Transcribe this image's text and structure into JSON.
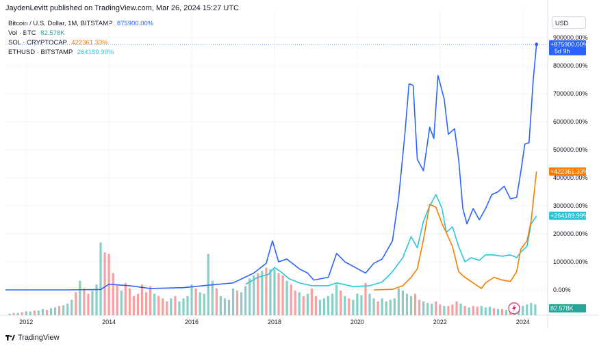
{
  "header": {
    "publisher_line": "JaydenLevitt published on TradingView.com, Mar 26, 2024 15:27 UTC"
  },
  "legend": [
    {
      "name": "Bitcoin / U.S. Dollar, 1M, BITSTAMP",
      "value": "875900.00%",
      "color": "#2962ff"
    },
    {
      "name": "Vol · BTC",
      "value": "82.578K",
      "color": "#26a69a"
    },
    {
      "name": "SOL · CRYPTOCAP",
      "value": "422361.33%",
      "color": "#f57c00"
    },
    {
      "name": "ETHUSD · BITSTAMP",
      "value": "264189.99%",
      "color": "#26c6da"
    }
  ],
  "currency_button": "USD",
  "footer": {
    "brand": "TradingView"
  },
  "price_axis": {
    "ticks": [
      "900000.00%",
      "800000.00%",
      "700000.00%",
      "600000.00%",
      "500000.00%",
      "400000.00%",
      "300000.00%",
      "200000.00%",
      "100000.00%",
      "0.00%"
    ],
    "labels": {
      "btc": {
        "text": "+875900.00%",
        "sub": "5d 9h",
        "color": "#2962ff"
      },
      "sol": {
        "text": "+422361.33%",
        "color": "#f57c00"
      },
      "eth": {
        "text": "+264189.99%",
        "color": "#26c6da"
      },
      "vol": {
        "text": "82.578K",
        "color": "#26a69a"
      }
    }
  },
  "time_axis": {
    "ticks": [
      "2012",
      "2014",
      "2016",
      "2018",
      "2020",
      "2022",
      "2024"
    ]
  },
  "chart_data": {
    "type": "line",
    "ylim": [
      -20000,
      900000
    ],
    "xlim": [
      2011.5,
      2024.6
    ],
    "series": [
      {
        "name": "Bitcoin / U.S. Dollar, 1M, BITSTAMP",
        "color": "#2962ff",
        "points": [
          [
            2011.5,
            0
          ],
          [
            2013.0,
            0
          ],
          [
            2013.8,
            1500
          ],
          [
            2014.0,
            20000
          ],
          [
            2014.5,
            15000
          ],
          [
            2015.0,
            5000
          ],
          [
            2015.8,
            8000
          ],
          [
            2016.5,
            18000
          ],
          [
            2017.0,
            25000
          ],
          [
            2017.5,
            60000
          ],
          [
            2017.8,
            95000
          ],
          [
            2017.95,
            175000
          ],
          [
            2018.1,
            100000
          ],
          [
            2018.3,
            110000
          ],
          [
            2018.6,
            75000
          ],
          [
            2018.8,
            60000
          ],
          [
            2018.95,
            35000
          ],
          [
            2019.3,
            45000
          ],
          [
            2019.5,
            130000
          ],
          [
            2019.7,
            100000
          ],
          [
            2019.95,
            80000
          ],
          [
            2020.2,
            60000
          ],
          [
            2020.4,
            95000
          ],
          [
            2020.6,
            110000
          ],
          [
            2020.85,
            175000
          ],
          [
            2021.0,
            330000
          ],
          [
            2021.15,
            555000
          ],
          [
            2021.25,
            735000
          ],
          [
            2021.35,
            730000
          ],
          [
            2021.45,
            465000
          ],
          [
            2021.6,
            425000
          ],
          [
            2021.75,
            580000
          ],
          [
            2021.85,
            540000
          ],
          [
            2021.95,
            765000
          ],
          [
            2022.1,
            680000
          ],
          [
            2022.2,
            555000
          ],
          [
            2022.35,
            575000
          ],
          [
            2022.45,
            465000
          ],
          [
            2022.55,
            290000
          ],
          [
            2022.65,
            235000
          ],
          [
            2022.8,
            290000
          ],
          [
            2022.95,
            250000
          ],
          [
            2023.1,
            290000
          ],
          [
            2023.25,
            340000
          ],
          [
            2023.4,
            350000
          ],
          [
            2023.55,
            370000
          ],
          [
            2023.7,
            325000
          ],
          [
            2023.85,
            330000
          ],
          [
            2023.95,
            420000
          ],
          [
            2024.05,
            520000
          ],
          [
            2024.15,
            525000
          ],
          [
            2024.25,
            745000
          ],
          [
            2024.33,
            875900
          ]
        ]
      },
      {
        "name": "ETHUSD · BITSTAMP",
        "color": "#26c6da",
        "points": [
          [
            2017.3,
            20000
          ],
          [
            2017.6,
            45000
          ],
          [
            2017.85,
            55000
          ],
          [
            2018.0,
            80000
          ],
          [
            2018.15,
            65000
          ],
          [
            2018.35,
            40000
          ],
          [
            2018.6,
            25000
          ],
          [
            2018.9,
            15000
          ],
          [
            2019.3,
            15000
          ],
          [
            2019.5,
            25000
          ],
          [
            2019.9,
            12000
          ],
          [
            2020.3,
            15000
          ],
          [
            2020.6,
            28000
          ],
          [
            2020.85,
            65000
          ],
          [
            2021.1,
            115000
          ],
          [
            2021.3,
            190000
          ],
          [
            2021.45,
            150000
          ],
          [
            2021.6,
            245000
          ],
          [
            2021.75,
            300000
          ],
          [
            2021.9,
            340000
          ],
          [
            2022.05,
            290000
          ],
          [
            2022.15,
            205000
          ],
          [
            2022.3,
            225000
          ],
          [
            2022.45,
            155000
          ],
          [
            2022.6,
            100000
          ],
          [
            2022.75,
            115000
          ],
          [
            2022.95,
            105000
          ],
          [
            2023.1,
            125000
          ],
          [
            2023.3,
            125000
          ],
          [
            2023.5,
            120000
          ],
          [
            2023.7,
            125000
          ],
          [
            2023.85,
            115000
          ],
          [
            2023.95,
            135000
          ],
          [
            2024.1,
            155000
          ],
          [
            2024.2,
            235000
          ],
          [
            2024.33,
            264190
          ]
        ]
      },
      {
        "name": "SOL · CRYPTOCAP",
        "color": "#f57c00",
        "points": [
          [
            2020.4,
            0
          ],
          [
            2020.85,
            2000
          ],
          [
            2021.1,
            15000
          ],
          [
            2021.3,
            45000
          ],
          [
            2021.45,
            75000
          ],
          [
            2021.6,
            180000
          ],
          [
            2021.75,
            305000
          ],
          [
            2021.9,
            295000
          ],
          [
            2022.05,
            235000
          ],
          [
            2022.15,
            205000
          ],
          [
            2022.3,
            155000
          ],
          [
            2022.45,
            65000
          ],
          [
            2022.6,
            45000
          ],
          [
            2022.75,
            30000
          ],
          [
            2022.9,
            15000
          ],
          [
            2023.0,
            5000
          ],
          [
            2023.1,
            25000
          ],
          [
            2023.3,
            45000
          ],
          [
            2023.5,
            35000
          ],
          [
            2023.7,
            30000
          ],
          [
            2023.85,
            65000
          ],
          [
            2023.95,
            145000
          ],
          [
            2024.1,
            175000
          ],
          [
            2024.2,
            245000
          ],
          [
            2024.33,
            422361
          ]
        ]
      }
    ],
    "volume": {
      "name": "Vol · BTC",
      "last_value": "82.578K",
      "up_color": "#26a69a",
      "down_color": "#ef5350",
      "bars": [
        [
          2011.6,
          2,
          1
        ],
        [
          2011.7,
          3,
          0
        ],
        [
          2011.8,
          3,
          1
        ],
        [
          2011.9,
          4,
          0
        ],
        [
          2012.0,
          5,
          1
        ],
        [
          2012.1,
          5,
          1
        ],
        [
          2012.2,
          6,
          0
        ],
        [
          2012.3,
          6,
          1
        ],
        [
          2012.4,
          8,
          1
        ],
        [
          2012.5,
          7,
          0
        ],
        [
          2012.6,
          9,
          1
        ],
        [
          2012.7,
          10,
          1
        ],
        [
          2012.8,
          12,
          0
        ],
        [
          2012.9,
          13,
          1
        ],
        [
          2013.0,
          15,
          1
        ],
        [
          2013.1,
          20,
          1
        ],
        [
          2013.2,
          30,
          0
        ],
        [
          2013.3,
          45,
          1
        ],
        [
          2013.4,
          35,
          0
        ],
        [
          2013.5,
          28,
          0
        ],
        [
          2013.6,
          32,
          1
        ],
        [
          2013.7,
          40,
          1
        ],
        [
          2013.8,
          95,
          1
        ],
        [
          2013.9,
          82,
          0
        ],
        [
          2014.0,
          80,
          0
        ],
        [
          2014.1,
          55,
          0
        ],
        [
          2014.2,
          40,
          0
        ],
        [
          2014.3,
          32,
          1
        ],
        [
          2014.4,
          42,
          0
        ],
        [
          2014.5,
          35,
          0
        ],
        [
          2014.6,
          25,
          0
        ],
        [
          2014.7,
          28,
          0
        ],
        [
          2014.8,
          40,
          0
        ],
        [
          2014.9,
          30,
          0
        ],
        [
          2015.0,
          38,
          0
        ],
        [
          2015.1,
          28,
          1
        ],
        [
          2015.2,
          25,
          0
        ],
        [
          2015.3,
          22,
          0
        ],
        [
          2015.4,
          18,
          0
        ],
        [
          2015.5,
          22,
          1
        ],
        [
          2015.6,
          25,
          0
        ],
        [
          2015.7,
          18,
          1
        ],
        [
          2015.8,
          22,
          1
        ],
        [
          2015.9,
          25,
          1
        ],
        [
          2016.0,
          40,
          1
        ],
        [
          2016.1,
          35,
          0
        ],
        [
          2016.2,
          30,
          1
        ],
        [
          2016.3,
          28,
          1
        ],
        [
          2016.4,
          80,
          1
        ],
        [
          2016.5,
          45,
          1
        ],
        [
          2016.6,
          35,
          0
        ],
        [
          2016.7,
          25,
          1
        ],
        [
          2016.8,
          22,
          1
        ],
        [
          2016.9,
          20,
          1
        ],
        [
          2017.0,
          35,
          1
        ],
        [
          2017.1,
          32,
          0
        ],
        [
          2017.2,
          30,
          1
        ],
        [
          2017.3,
          38,
          1
        ],
        [
          2017.4,
          48,
          1
        ],
        [
          2017.5,
          52,
          1
        ],
        [
          2017.6,
          55,
          0
        ],
        [
          2017.7,
          58,
          1
        ],
        [
          2017.8,
          62,
          0
        ],
        [
          2017.9,
          60,
          1
        ],
        [
          2018.0,
          60,
          1
        ],
        [
          2018.1,
          55,
          0
        ],
        [
          2018.2,
          52,
          0
        ],
        [
          2018.3,
          45,
          1
        ],
        [
          2018.4,
          40,
          0
        ],
        [
          2018.5,
          32,
          0
        ],
        [
          2018.6,
          30,
          1
        ],
        [
          2018.7,
          25,
          0
        ],
        [
          2018.8,
          28,
          1
        ],
        [
          2018.9,
          35,
          0
        ],
        [
          2019.0,
          25,
          0
        ],
        [
          2019.1,
          20,
          1
        ],
        [
          2019.2,
          22,
          1
        ],
        [
          2019.3,
          25,
          1
        ],
        [
          2019.4,
          28,
          1
        ],
        [
          2019.5,
          40,
          1
        ],
        [
          2019.6,
          32,
          0
        ],
        [
          2019.7,
          25,
          1
        ],
        [
          2019.8,
          22,
          0
        ],
        [
          2019.9,
          20,
          1
        ],
        [
          2020.0,
          28,
          1
        ],
        [
          2020.1,
          26,
          1
        ],
        [
          2020.2,
          42,
          0
        ],
        [
          2020.3,
          28,
          1
        ],
        [
          2020.4,
          22,
          1
        ],
        [
          2020.5,
          18,
          0
        ],
        [
          2020.6,
          22,
          1
        ],
        [
          2020.7,
          18,
          1
        ],
        [
          2020.8,
          20,
          1
        ],
        [
          2020.9,
          22,
          1
        ],
        [
          2021.0,
          35,
          1
        ],
        [
          2021.1,
          32,
          1
        ],
        [
          2021.2,
          28,
          1
        ],
        [
          2021.3,
          25,
          1
        ],
        [
          2021.4,
          28,
          0
        ],
        [
          2021.5,
          20,
          0
        ],
        [
          2021.6,
          18,
          1
        ],
        [
          2021.7,
          16,
          1
        ],
        [
          2021.8,
          15,
          1
        ],
        [
          2021.9,
          18,
          0
        ],
        [
          2022.0,
          14,
          0
        ],
        [
          2022.1,
          12,
          1
        ],
        [
          2022.2,
          12,
          0
        ],
        [
          2022.3,
          14,
          0
        ],
        [
          2022.4,
          18,
          0
        ],
        [
          2022.5,
          15,
          1
        ],
        [
          2022.6,
          12,
          0
        ],
        [
          2022.7,
          10,
          1
        ],
        [
          2022.8,
          12,
          0
        ],
        [
          2022.9,
          11,
          0
        ],
        [
          2023.0,
          12,
          1
        ],
        [
          2023.1,
          10,
          1
        ],
        [
          2023.2,
          11,
          1
        ],
        [
          2023.3,
          9,
          0
        ],
        [
          2023.4,
          8,
          1
        ],
        [
          2023.5,
          8,
          0
        ],
        [
          2023.6,
          7,
          1
        ],
        [
          2023.7,
          8,
          0
        ],
        [
          2023.8,
          9,
          1
        ],
        [
          2023.9,
          10,
          1
        ],
        [
          2024.0,
          12,
          1
        ],
        [
          2024.1,
          14,
          1
        ],
        [
          2024.2,
          16,
          1
        ],
        [
          2024.3,
          14,
          1
        ]
      ]
    }
  }
}
